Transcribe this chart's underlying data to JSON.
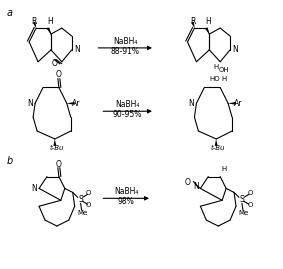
{
  "background_color": "#ffffff",
  "label_a": "a",
  "label_b": "b",
  "reaction1_reagent": "NaBH₄",
  "reaction1_yield": "88-91%",
  "reaction2_reagent": "NaBH₄",
  "reaction2_yield": "90-95%",
  "reaction3_reagent": "NaBH₄",
  "reaction3_yield": "98%",
  "figsize": [
    2.83,
    2.69
  ],
  "dpi": 100
}
